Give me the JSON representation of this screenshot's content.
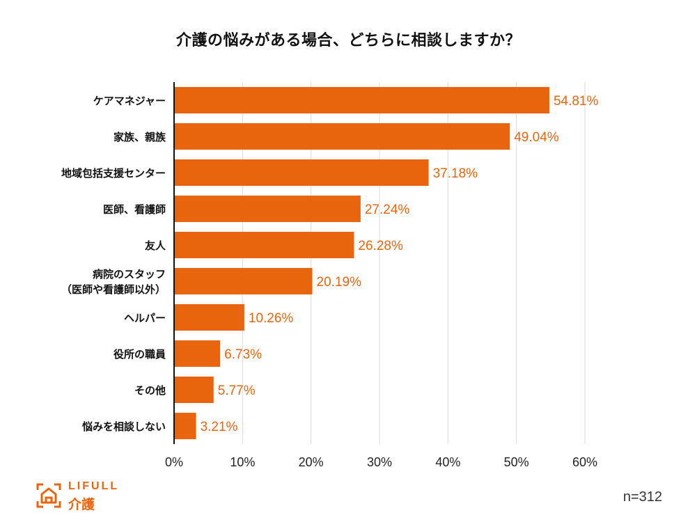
{
  "chart_data": {
    "type": "bar",
    "orientation": "horizontal",
    "title": "介護の悩みがある場合、どちらに相談しますか？",
    "categories": [
      [
        "ケアマネジャー"
      ],
      [
        "家族、親族"
      ],
      [
        "地域包括支援センター"
      ],
      [
        "医師、看護師"
      ],
      [
        "友人"
      ],
      [
        "病院のスタッフ",
        "（医師や看護師以外）"
      ],
      [
        "ヘルパー"
      ],
      [
        "役所の職員"
      ],
      [
        "その他"
      ],
      [
        "悩みを相談しない"
      ]
    ],
    "values": [
      54.81,
      49.04,
      37.18,
      27.24,
      26.28,
      20.19,
      10.26,
      6.73,
      5.77,
      3.21
    ],
    "value_labels": [
      "54.81%",
      "49.04%",
      "37.18%",
      "27.24%",
      "26.28%",
      "20.19%",
      "10.26%",
      "6.73%",
      "5.77%",
      "3.21%"
    ],
    "xlim": [
      0,
      60
    ],
    "xticks": [
      0,
      10,
      20,
      30,
      40,
      50,
      60
    ],
    "xtick_labels": [
      "0%",
      "10%",
      "20%",
      "30%",
      "40%",
      "50%",
      "60%"
    ],
    "grid": "vertical",
    "bar_color": "#e8650e",
    "label_color": "#e8650e"
  },
  "footer": {
    "sample_size": "n=312",
    "logo_top": "LIFULL",
    "logo_bottom": "介護"
  }
}
